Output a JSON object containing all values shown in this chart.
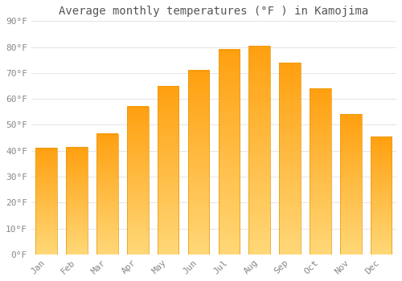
{
  "months": [
    "Jan",
    "Feb",
    "Mar",
    "Apr",
    "May",
    "Jun",
    "Jul",
    "Aug",
    "Sep",
    "Oct",
    "Nov",
    "Dec"
  ],
  "values": [
    41,
    41.5,
    46.5,
    57,
    65,
    71,
    79,
    80.5,
    74,
    64,
    54,
    45.5
  ],
  "bar_color_top": "#FFA500",
  "bar_color_bottom": "#FFD060",
  "bar_edge_color": "#E8960A",
  "title": "Average monthly temperatures (°F ) in Kamojima",
  "ylim": [
    0,
    90
  ],
  "yticks": [
    0,
    10,
    20,
    30,
    40,
    50,
    60,
    70,
    80,
    90
  ],
  "ytick_labels": [
    "0°F",
    "10°F",
    "20°F",
    "30°F",
    "40°F",
    "50°F",
    "60°F",
    "70°F",
    "80°F",
    "90°F"
  ],
  "title_fontsize": 10,
  "tick_fontsize": 8,
  "background_color": "#FFFFFF",
  "grid_color": "#E0E0E0",
  "bar_width": 0.7
}
